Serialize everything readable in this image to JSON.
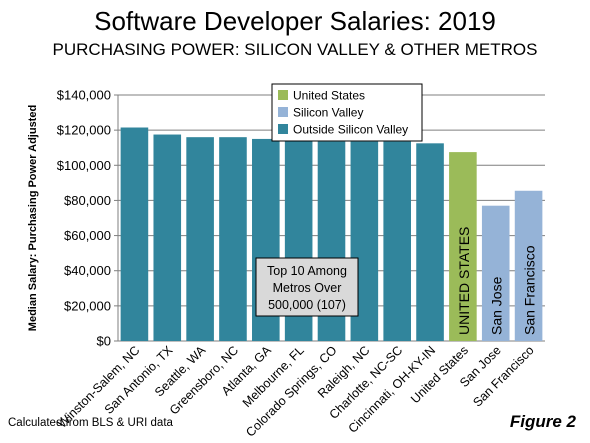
{
  "page": {
    "title": "Software Developer Salaries: 2019",
    "subtitle": "PURCHASING  POWER: SILICON VALLEY & OTHER METROS",
    "footer_note": "Calculated from BLS & URI data",
    "figure_label": "Figure 2"
  },
  "chart_data": {
    "type": "bar",
    "ylabel": "Median Salary: Purchasing Power Adjusted",
    "ylim": [
      0,
      140000
    ],
    "yticks": [
      0,
      20000,
      40000,
      60000,
      80000,
      100000,
      120000,
      140000
    ],
    "ytick_labels": [
      "$0",
      "$20,000",
      "$40,000",
      "$60,000",
      "$80,000",
      "$100,000",
      "$120,000",
      "$140,000"
    ],
    "grid": "horizontal",
    "legend_position": "top-center",
    "categories": [
      "Winston-Salem, NC",
      "San Antonio, TX",
      "Seattle, WA",
      "Greensboro, NC",
      "Atlanta, GA",
      "Melbourne, FL",
      "Colorado Springs, CO",
      "Raleigh, NC",
      "Charlotte, NC-SC",
      "Cincinnati, OH-KY-IN",
      "United States",
      "San Jose",
      "San Francisco"
    ],
    "values": [
      121500,
      117500,
      116000,
      116000,
      115000,
      114500,
      113500,
      113500,
      113500,
      112500,
      107500,
      77000,
      85500
    ],
    "bar_groups": [
      "Outside Silicon Valley",
      "Outside Silicon Valley",
      "Outside Silicon Valley",
      "Outside Silicon Valley",
      "Outside Silicon Valley",
      "Outside Silicon Valley",
      "Outside Silicon Valley",
      "Outside Silicon Valley",
      "Outside Silicon Valley",
      "Outside Silicon Valley",
      "United States",
      "Silicon Valley",
      "Silicon Valley"
    ],
    "in_bar_labels": {
      "10": "UNITED STATES",
      "11": "San Jose",
      "12": "San Francisco"
    },
    "legend": [
      {
        "name": "United States",
        "color": "#9bbb59"
      },
      {
        "name": "Silicon Valley",
        "color": "#95b3d7"
      },
      {
        "name": "Outside Silicon Valley",
        "color": "#31859c"
      }
    ],
    "annotation": [
      "Top 10 Among",
      "Metros Over",
      "500,000 (107)"
    ]
  }
}
